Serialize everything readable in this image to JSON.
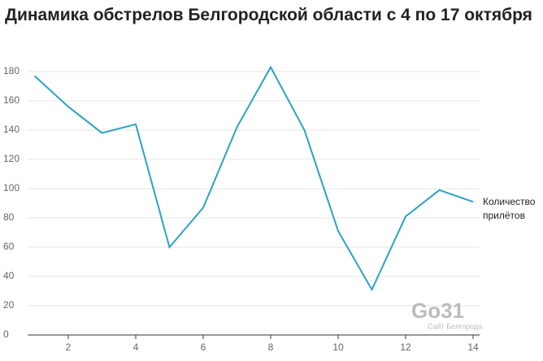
{
  "chart_data": {
    "type": "line",
    "title": "Динамика обстрелов Белгородской области с 4 по 17 октября",
    "x": [
      1,
      2,
      3,
      4,
      5,
      6,
      7,
      8,
      9,
      10,
      11,
      12,
      13,
      14
    ],
    "series": [
      {
        "name": "Количество прилётов",
        "color": "#2ba3c6",
        "values": [
          177,
          156,
          138,
          144,
          60,
          87,
          142,
          183,
          140,
          71,
          31,
          81,
          99,
          91
        ]
      }
    ],
    "xlim": [
      0.8,
      14.2
    ],
    "xticks": [
      2,
      4,
      6,
      8,
      10,
      12,
      14
    ],
    "ylim": [
      0,
      180
    ],
    "yticks": [
      0,
      20,
      40,
      60,
      80,
      100,
      120,
      140,
      160,
      180
    ],
    "grid": true
  },
  "watermark": {
    "logo": "Go31",
    "caption": "Сайт Белгорода"
  }
}
